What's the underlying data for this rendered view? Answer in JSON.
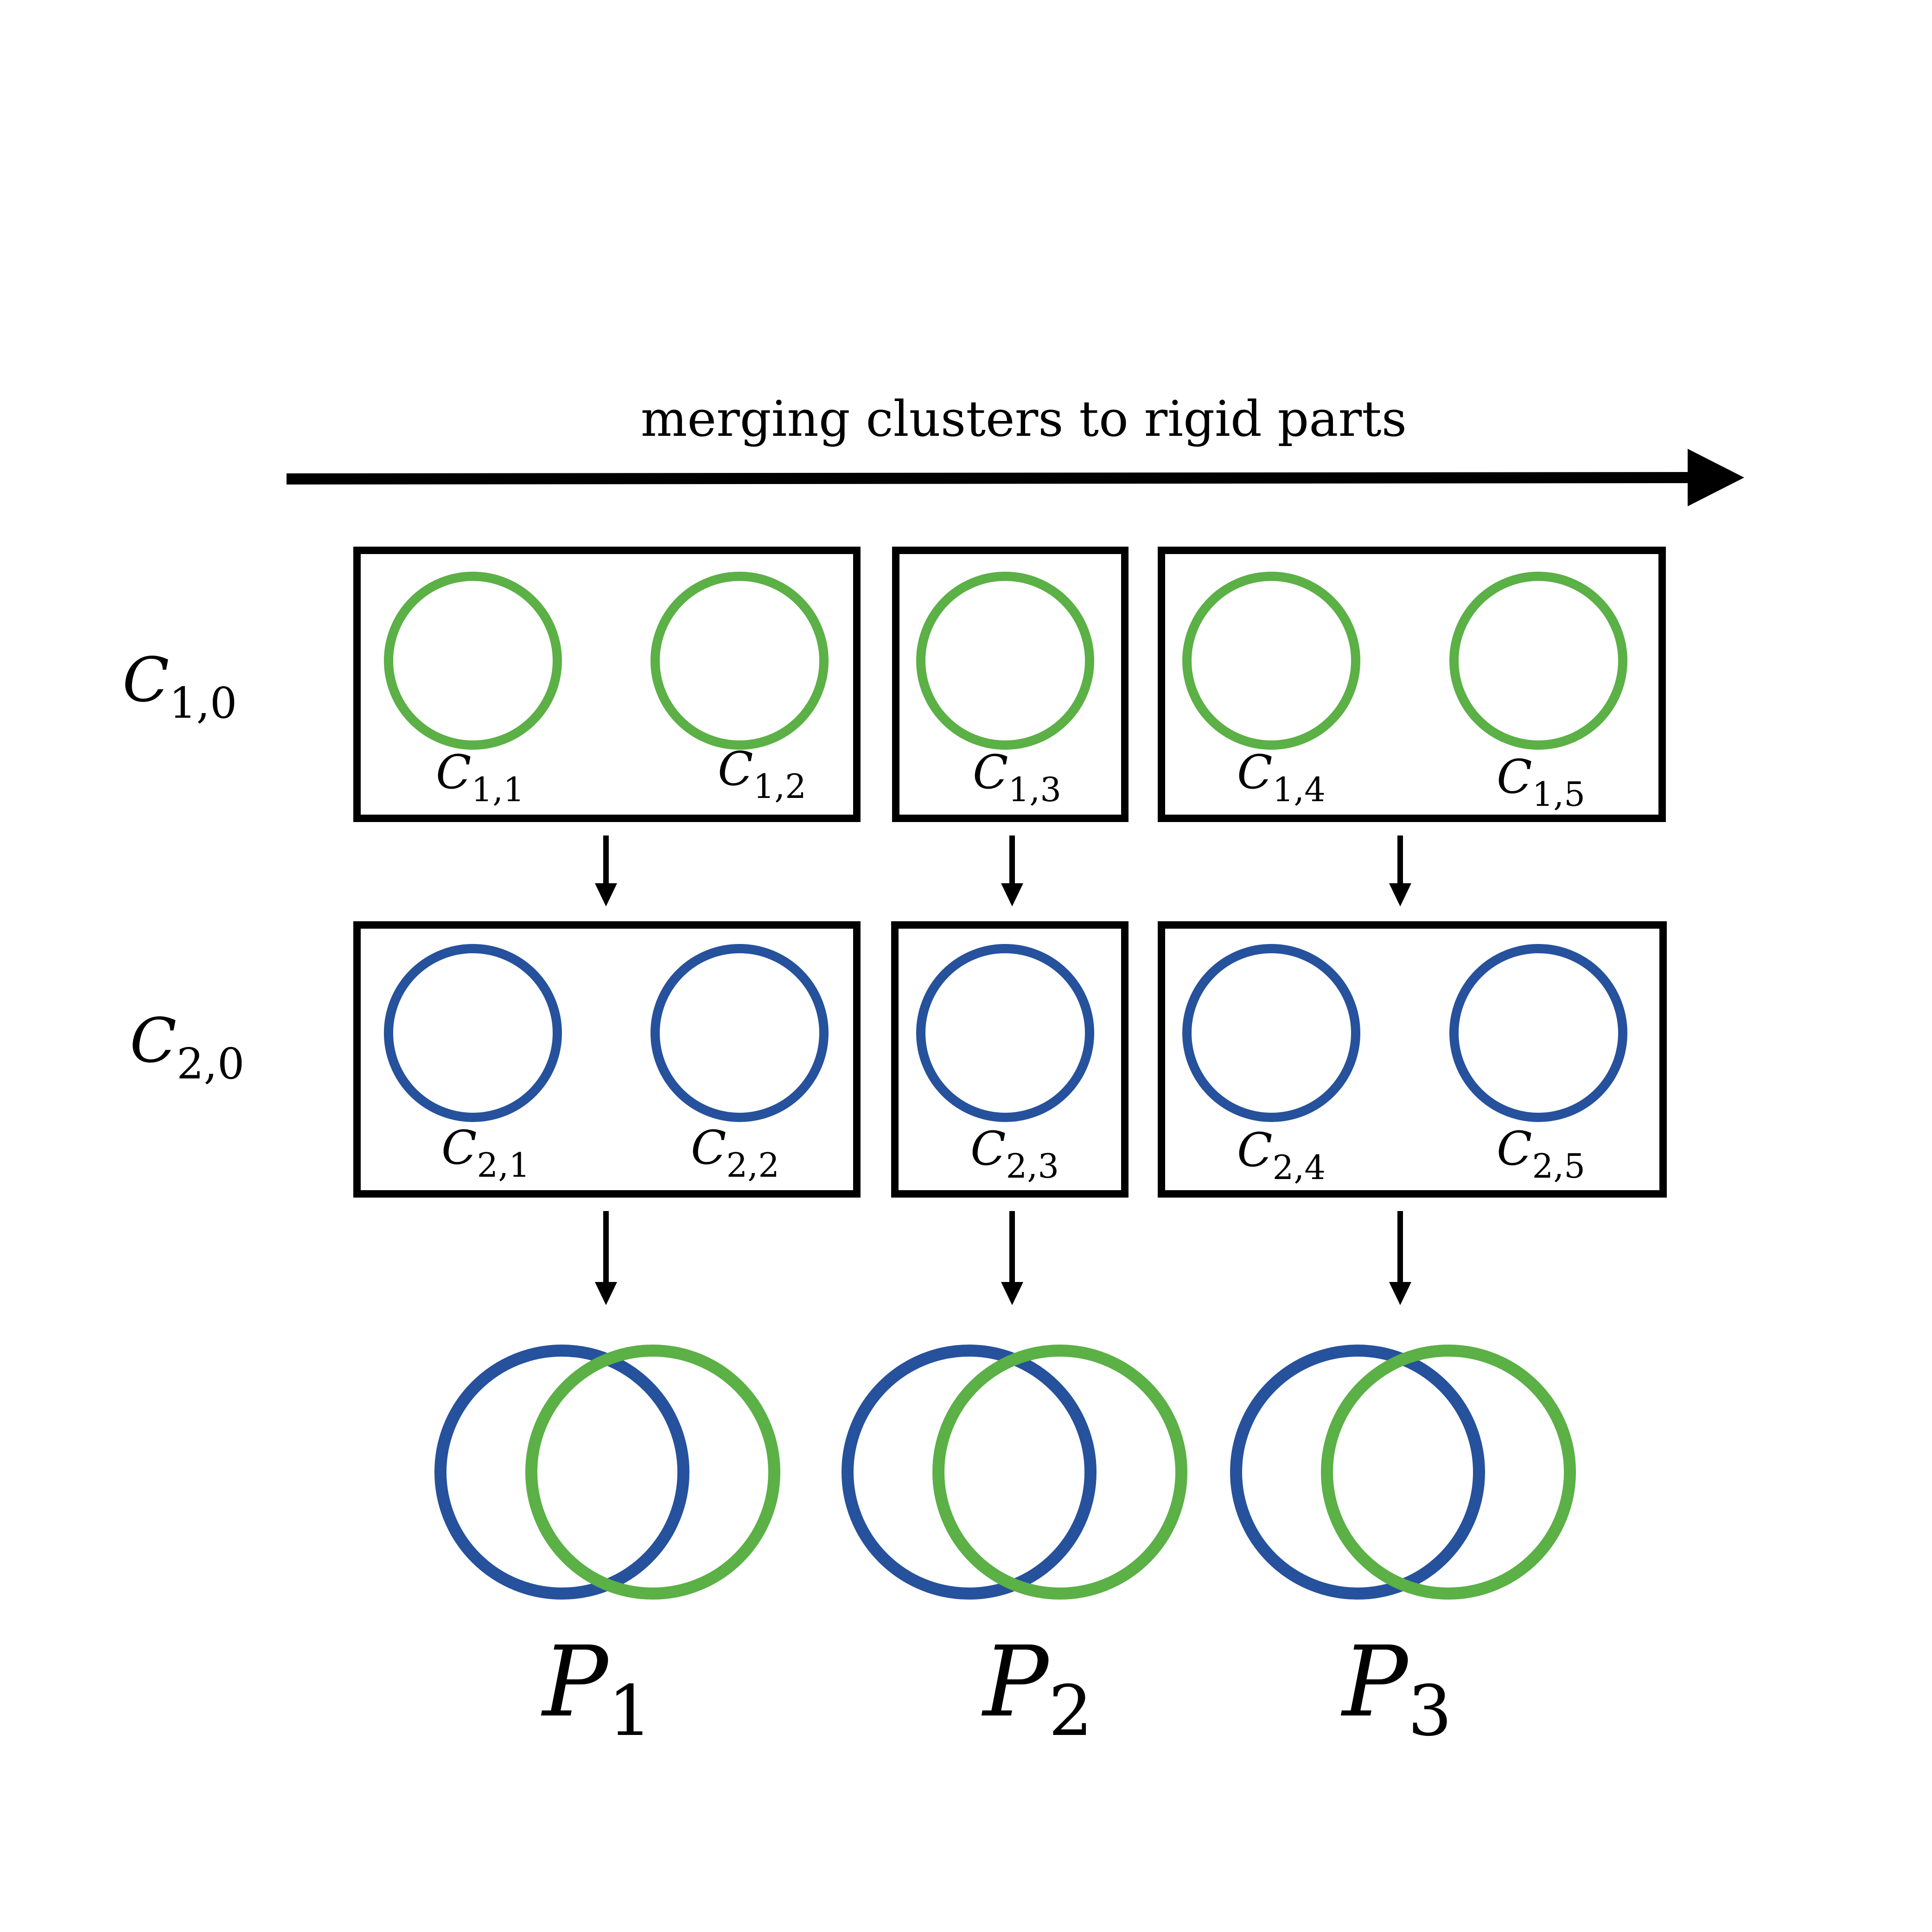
{
  "colors": {
    "green": "#5BB046",
    "blue": "#26519C",
    "stroke": "#000000"
  },
  "header": {
    "title": "merging clusters to rigid parts"
  },
  "rows": [
    {
      "label_main": "C",
      "label_sub": "1,0",
      "color": "green",
      "groups": [
        {
          "clusters": [
            {
              "main": "C",
              "sub": "1,1"
            },
            {
              "main": "C",
              "sub": "1,2"
            }
          ]
        },
        {
          "clusters": [
            {
              "main": "C",
              "sub": "1,3"
            }
          ]
        },
        {
          "clusters": [
            {
              "main": "C",
              "sub": "1,4"
            },
            {
              "main": "C",
              "sub": "1,5"
            }
          ]
        }
      ]
    },
    {
      "label_main": "C",
      "label_sub": "2,0",
      "color": "blue",
      "groups": [
        {
          "clusters": [
            {
              "main": "C",
              "sub": "2,1"
            },
            {
              "main": "C",
              "sub": "2,2"
            }
          ]
        },
        {
          "clusters": [
            {
              "main": "C",
              "sub": "2,3"
            }
          ]
        },
        {
          "clusters": [
            {
              "main": "C",
              "sub": "2,4"
            },
            {
              "main": "C",
              "sub": "2,5"
            }
          ]
        }
      ]
    }
  ],
  "parts": [
    {
      "main": "P",
      "sub": "1"
    },
    {
      "main": "P",
      "sub": "2"
    },
    {
      "main": "P",
      "sub": "3"
    }
  ]
}
